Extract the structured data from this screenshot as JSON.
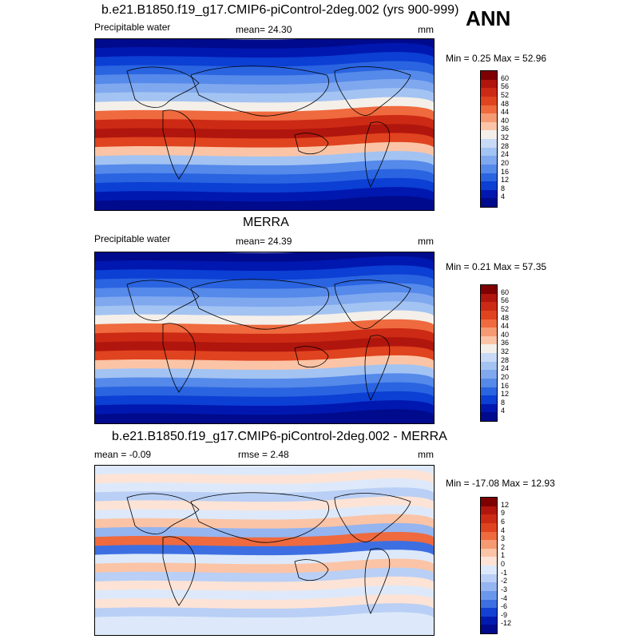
{
  "season": "ANN",
  "panels": [
    {
      "title": "b.e21.B1850.f19_g17.CMIP6-piControl-2deg.002 (yrs 900-999)",
      "left_label": "Precipitable water",
      "center_label": "mean=  24.30",
      "units": "mm",
      "minmax": "Min =   0.25 Max =  52.96",
      "levels": [
        "60",
        "56",
        "52",
        "48",
        "44",
        "40",
        "36",
        "32",
        "28",
        "24",
        "20",
        "16",
        "12",
        "8",
        "4"
      ],
      "colors": [
        "#7f0000",
        "#b0160d",
        "#cc2a14",
        "#e0431f",
        "#ef6a3e",
        "#f59a72",
        "#fbc4a6",
        "#f4efe9",
        "#c8daf5",
        "#a3c3f2",
        "#7fa8ef",
        "#5589ea",
        "#2a64e0",
        "#0c3fd4",
        "#0018b0",
        "#000a8c"
      ]
    },
    {
      "title": "MERRA",
      "left_label": "Precipitable water",
      "center_label": "mean=  24.39",
      "units": "mm",
      "minmax": "Min =   0.21 Max =  57.35",
      "levels": [
        "60",
        "56",
        "52",
        "48",
        "44",
        "40",
        "36",
        "32",
        "28",
        "24",
        "20",
        "16",
        "12",
        "8",
        "4"
      ],
      "colors": [
        "#7f0000",
        "#b0160d",
        "#cc2a14",
        "#e0431f",
        "#ef6a3e",
        "#f59a72",
        "#fbc4a6",
        "#f4efe9",
        "#c8daf5",
        "#a3c3f2",
        "#7fa8ef",
        "#5589ea",
        "#2a64e0",
        "#0c3fd4",
        "#0018b0",
        "#000a8c"
      ]
    },
    {
      "title": "b.e21.B1850.f19_g17.CMIP6-piControl-2deg.002 - MERRA",
      "left_label": "mean =  -0.09",
      "center_label": "rmse =   2.48",
      "units": "mm",
      "minmax": "Min = -17.08 Max =  12.93",
      "levels": [
        "12",
        "9",
        "6",
        "4",
        "3",
        "2",
        "1",
        "0",
        "-1",
        "-2",
        "-3",
        "-4",
        "-6",
        "-9",
        "-12"
      ],
      "colors": [
        "#7f0000",
        "#b0160d",
        "#cc2a14",
        "#e0431f",
        "#ef6a3e",
        "#f59a72",
        "#fbc4a6",
        "#fde3d6",
        "#dde9fa",
        "#b9cff5",
        "#94b5f0",
        "#6a96ec",
        "#3d6fe2",
        "#1240d2",
        "#001ab0",
        "#000a8c"
      ]
    }
  ]
}
